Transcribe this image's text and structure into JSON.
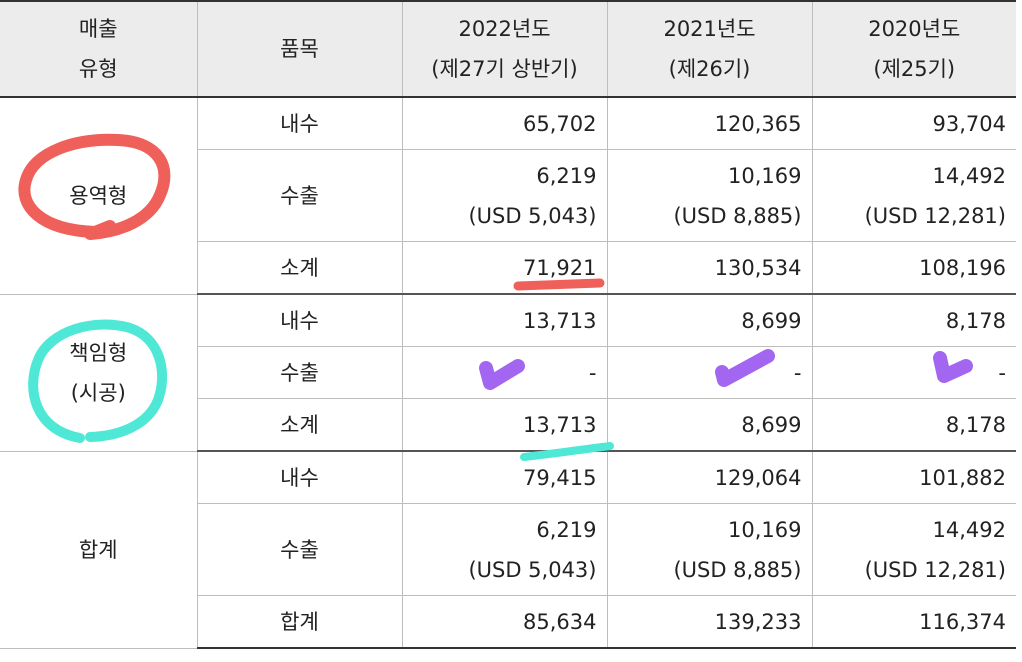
{
  "header": {
    "col1": [
      "매출",
      "유형"
    ],
    "col2": "품목",
    "col3": [
      "2022년도",
      "(제27기 상반기)"
    ],
    "col4": [
      "2021년도",
      "(제26기)"
    ],
    "col5": [
      "2020년도",
      "(제25기)"
    ]
  },
  "sections": [
    {
      "group": [
        "용역형"
      ],
      "rows": [
        {
          "item": "내수",
          "values": [
            [
              "65,702"
            ],
            [
              "120,365"
            ],
            [
              "93,704"
            ]
          ]
        },
        {
          "item": "수출",
          "values": [
            [
              "6,219",
              "(USD 5,043)"
            ],
            [
              "10,169",
              "(USD 8,885)"
            ],
            [
              "14,492",
              "(USD 12,281)"
            ]
          ]
        },
        {
          "item": "소계",
          "values": [
            [
              "71,921"
            ],
            [
              "130,534"
            ],
            [
              "108,196"
            ]
          ]
        }
      ]
    },
    {
      "group": [
        "책임형",
        "(시공)"
      ],
      "rows": [
        {
          "item": "내수",
          "values": [
            [
              "13,713"
            ],
            [
              "8,699"
            ],
            [
              "8,178"
            ]
          ]
        },
        {
          "item": "수출",
          "values": [
            [
              "-"
            ],
            [
              "-"
            ],
            [
              "-"
            ]
          ]
        },
        {
          "item": "소계",
          "values": [
            [
              "13,713"
            ],
            [
              "8,699"
            ],
            [
              "8,178"
            ]
          ]
        }
      ]
    },
    {
      "group": [
        "합계"
      ],
      "rows": [
        {
          "item": "내수",
          "values": [
            [
              "79,415"
            ],
            [
              "129,064"
            ],
            [
              "101,882"
            ]
          ]
        },
        {
          "item": "수출",
          "values": [
            [
              "6,219",
              "(USD 5,043)"
            ],
            [
              "10,169",
              "(USD 8,885)"
            ],
            [
              "14,492",
              "(USD 12,281)"
            ]
          ]
        },
        {
          "item": "합계",
          "values": [
            [
              "85,634"
            ],
            [
              "139,233"
            ],
            [
              "116,374"
            ]
          ]
        }
      ]
    }
  ],
  "annotation_colors": {
    "red": "#f0605a",
    "cyan": "#4fe8d6",
    "purple": "#a366f0"
  }
}
